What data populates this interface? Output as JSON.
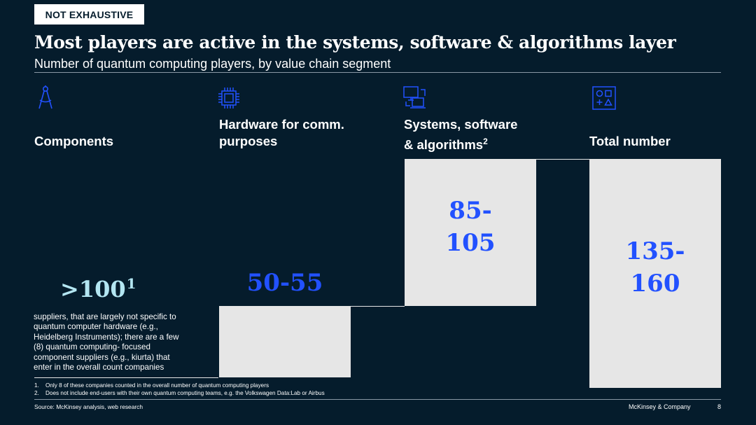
{
  "tag": "NOT EXHAUSTIVE",
  "title": "Most players are active in the systems, software & algorithms layer",
  "subtitle": "Number of quantum computing players, by value chain segment",
  "colors": {
    "background": "#051c2c",
    "bar": "#e6e6e6",
    "value_blue": "#2251ff",
    "value_light": "#b3e6f2"
  },
  "segments": [
    {
      "label_line1": "",
      "label_line2": "Components",
      "icon": "drafting-compass-icon"
    },
    {
      "label_line1": "Hardware for comm.",
      "label_line2": "purposes",
      "icon": "microchip-icon"
    },
    {
      "label_line1": "Systems, software",
      "label_line2": "& algorithms",
      "label_sup": "2",
      "icon": "computer-devices-icon"
    },
    {
      "label_line1": "",
      "label_line2": "Total number",
      "icon": "shapes-grid-icon"
    }
  ],
  "components": {
    "value": ">100",
    "value_sup": "1",
    "description": "suppliers, that are largely not specific to quantum computer hardware (e.g., Heidelberg Instruments); there are a few (8) quantum computing- focused component suppliers (e.g., kiurta) that enter in the overall count companies"
  },
  "chart_data": {
    "type": "bar",
    "title": "Most players are active in the systems, software & algorithms layer",
    "subtitle": "Number of quantum computing players, by value chain segment",
    "variant": "waterfall",
    "categories": [
      "Hardware for comm. purposes",
      "Systems, software & algorithms",
      "Total number"
    ],
    "ranges": [
      [
        50,
        55
      ],
      [
        85,
        105
      ],
      [
        135,
        160
      ]
    ],
    "value_labels": [
      "50-55",
      "85-\n105",
      "135-\n160"
    ],
    "waterfall_steps": [
      {
        "category": "Hardware for comm. purposes",
        "start": 0,
        "end": 52.5,
        "kind": "increment"
      },
      {
        "category": "Systems, software & algorithms",
        "start": 52.5,
        "end": 147.5,
        "kind": "increment"
      },
      {
        "category": "Total number",
        "start": 0,
        "end": 147.5,
        "kind": "total"
      }
    ],
    "grid": false,
    "legend": "none"
  },
  "footnotes": [
    {
      "num": "1.",
      "text": "Only 8 of these companies counted in the overall number of quantum computing players"
    },
    {
      "num": "2.",
      "text": "Does not include end-users with their own quantum computing teams, e.g. the Volkswagen Data:Lab or Airbus"
    }
  ],
  "source": "Source: McKinsey analysis, web research",
  "brand": "McKinsey & Company",
  "page_number": "8"
}
